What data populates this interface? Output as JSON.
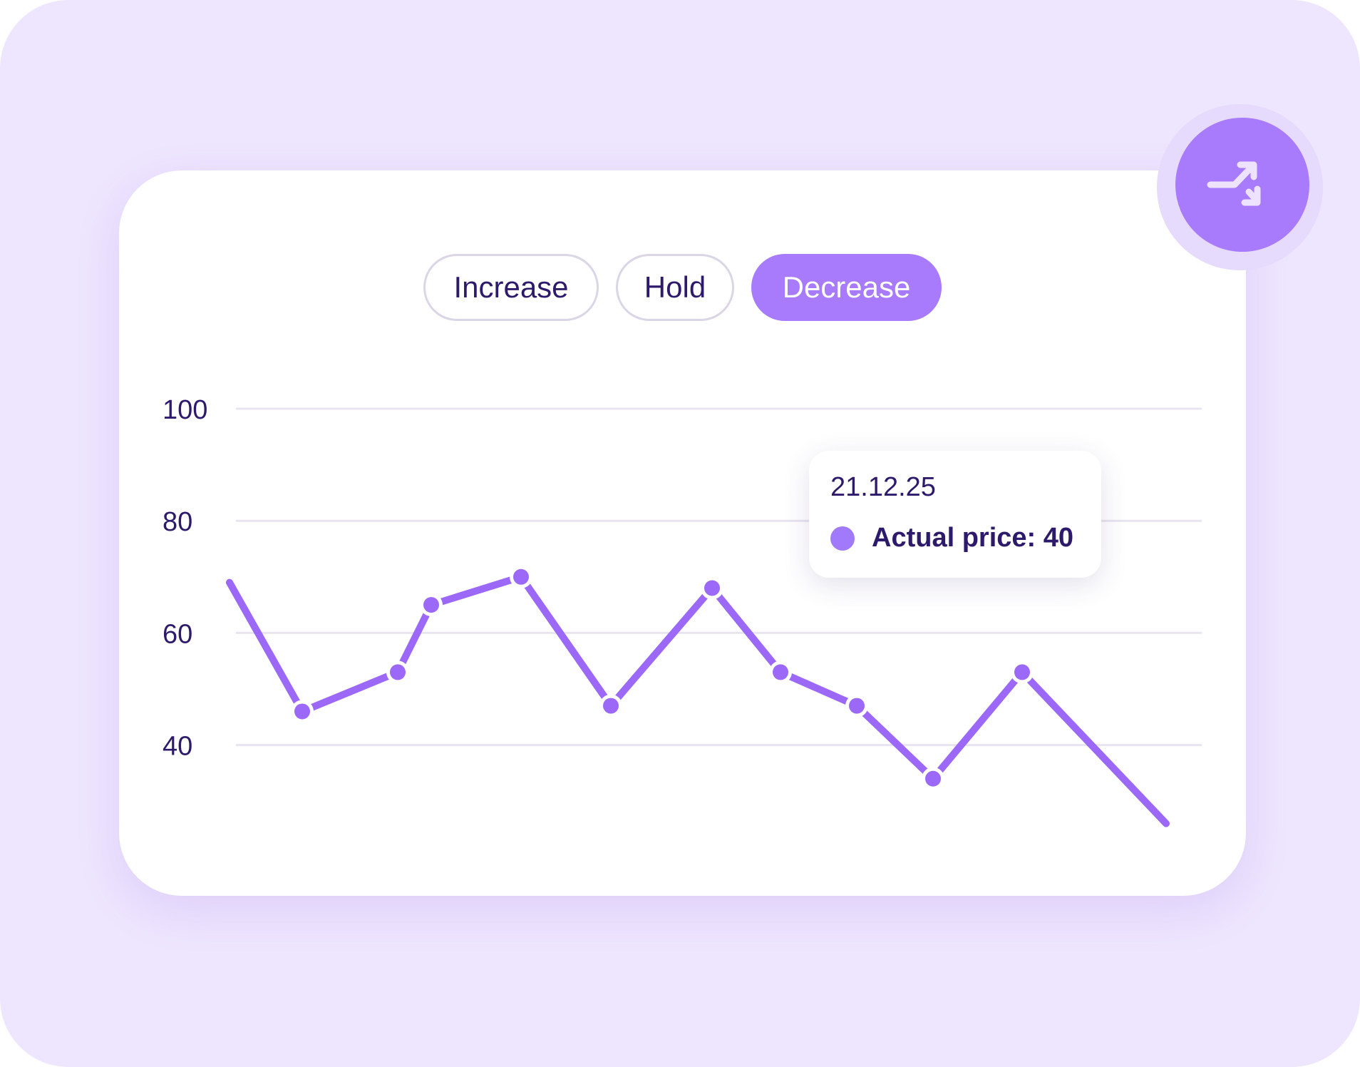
{
  "tabs": {
    "increase": "Increase",
    "hold": "Hold",
    "decrease": "Decrease",
    "selected": "Decrease"
  },
  "badge": {
    "icon": "shuffle-arrows-icon"
  },
  "tooltip": {
    "date": "21.12.25",
    "label": "Actual price: 40"
  },
  "colors": {
    "background": "#EEE5FE",
    "accent": "#A77BFB",
    "line": "#9C68F7",
    "text": "#2E1A6A",
    "grid": "#E8E5F0"
  },
  "chart_data": {
    "type": "line",
    "yticks": [
      100,
      80,
      60,
      40
    ],
    "ylim": [
      26,
      100
    ],
    "grid": true,
    "series": [
      {
        "values": [
          69,
          46,
          53,
          65,
          70,
          47,
          68,
          53,
          47,
          34,
          53,
          26
        ],
        "markers": [
          false,
          true,
          true,
          true,
          true,
          true,
          true,
          true,
          true,
          true,
          true,
          false
        ]
      }
    ]
  }
}
